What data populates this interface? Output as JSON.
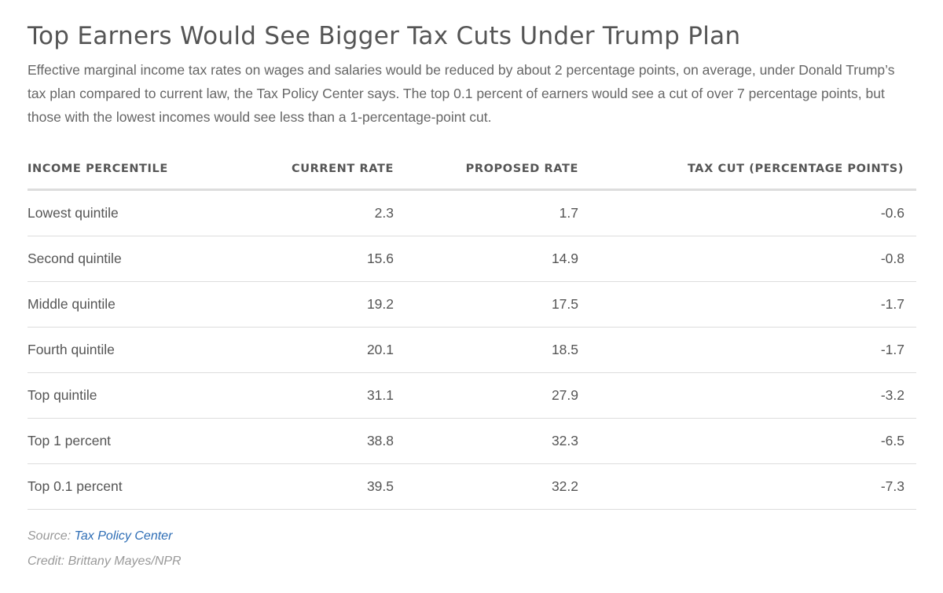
{
  "title": "Top Earners Would See Bigger Tax Cuts Under Trump Plan",
  "subtitle": "Effective marginal income tax rates on wages and salaries would be reduced by about 2 percentage points, on average, under Donald Trump’s tax plan compared to current law, the Tax Policy Center says. The top 0.1 percent of earners would see a cut of over 7 percentage points, but those with the lowest incomes would see less than a 1-percentage-point cut.",
  "chart_data": {
    "type": "table",
    "title": "Top Earners Would See Bigger Tax Cuts Under Trump Plan",
    "columns": [
      "INCOME PERCENTILE",
      "CURRENT RATE",
      "PROPOSED RATE",
      "TAX CUT (PERCENTAGE POINTS)"
    ],
    "rows": [
      [
        "Lowest quintile",
        "2.3",
        "1.7",
        "-0.6"
      ],
      [
        "Second quintile",
        "15.6",
        "14.9",
        "-0.8"
      ],
      [
        "Middle quintile",
        "19.2",
        "17.5",
        "-1.7"
      ],
      [
        "Fourth quintile",
        "20.1",
        "18.5",
        "-1.7"
      ],
      [
        "Top quintile",
        "31.1",
        "27.9",
        "-3.2"
      ],
      [
        "Top 1 percent",
        "38.8",
        "32.3",
        "-6.5"
      ],
      [
        "Top 0.1 percent",
        "39.5",
        "32.2",
        "-7.3"
      ]
    ]
  },
  "footer": {
    "source_label": "Source:",
    "source_link": "Tax Policy Center",
    "credit": "Credit: Brittany Mayes/NPR"
  },
  "colors": {
    "text": "#555555",
    "muted": "#999999",
    "link": "#2d6db5",
    "rule": "#dddddd"
  }
}
